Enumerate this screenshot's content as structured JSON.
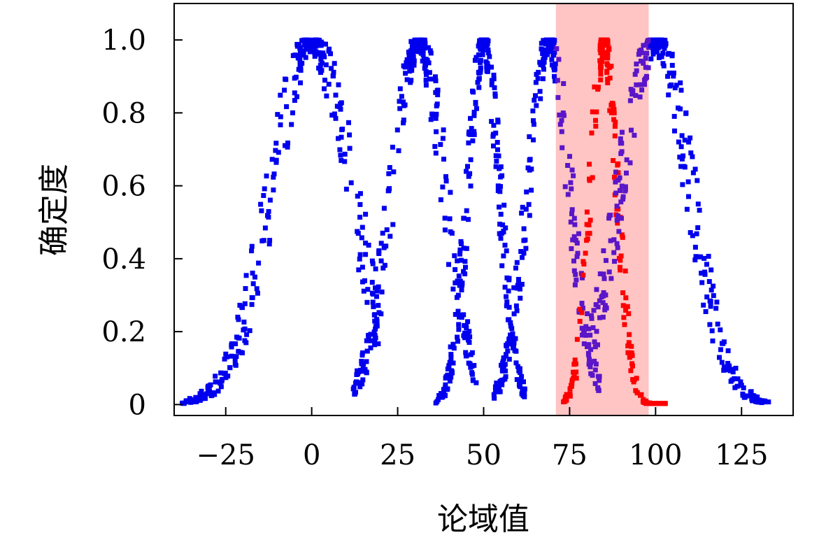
{
  "chart_data": {
    "type": "scatter",
    "xlabel": "论域值",
    "ylabel": "确定度",
    "xlim": [
      -40,
      140
    ],
    "ylim": [
      -0.03,
      1.1
    ],
    "x_ticks": [
      -25,
      0,
      25,
      50,
      75,
      100,
      125
    ],
    "x_tick_labels": [
      "−25",
      "0",
      "25",
      "50",
      "75",
      "100",
      "125"
    ],
    "y_ticks": [
      0,
      0.2,
      0.4,
      0.6,
      0.8,
      1.0
    ],
    "y_tick_labels": [
      "0",
      "0.2",
      "0.4",
      "0.6",
      "0.8",
      "1.0"
    ],
    "highlight_band": {
      "x_from": 71,
      "x_to": 98,
      "color": "#ffc4c4"
    },
    "grid": false,
    "series": [
      {
        "center": 0,
        "spread": 11.5,
        "x_range": [
          -38,
          20
        ],
        "points": 320,
        "color": "#0000ee"
      },
      {
        "center": 31,
        "spread": 7.5,
        "x_range": [
          12,
          48
        ],
        "points": 280,
        "color": "#0000ee"
      },
      {
        "center": 50,
        "spread": 4.5,
        "x_range": [
          36,
          62
        ],
        "points": 260,
        "color": "#0000ee"
      },
      {
        "center": 69,
        "spread": 6.0,
        "x_range": [
          53,
          84
        ],
        "points": 260,
        "color": "#0000ee"
      },
      {
        "center": 85,
        "spread": 3.8,
        "x_range": [
          73,
          103
        ],
        "points": 260,
        "color": "#ff0000"
      },
      {
        "center": 100,
        "spread": 10.0,
        "x_range": [
          80,
          133
        ],
        "points": 320,
        "color": "#0000ee"
      }
    ]
  }
}
